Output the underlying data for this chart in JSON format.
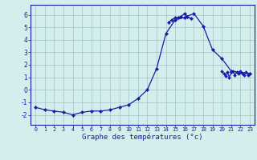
{
  "hours": [
    0,
    1,
    2,
    3,
    4,
    5,
    6,
    7,
    8,
    9,
    10,
    11,
    12,
    13,
    14,
    15,
    16,
    17,
    18,
    19,
    20,
    21,
    22,
    23
  ],
  "temperatures": [
    -1.4,
    -1.6,
    -1.7,
    -1.8,
    -2.0,
    -1.8,
    -1.7,
    -1.7,
    -1.6,
    -1.4,
    -1.2,
    -0.7,
    0.0,
    1.7,
    4.5,
    5.6,
    5.8,
    6.1,
    5.1,
    3.2,
    2.5,
    1.5,
    1.4,
    1.3
  ],
  "peak_hours": [
    14.3,
    14.6,
    15.0,
    15.3,
    15.6,
    16.0,
    16.3,
    16.7
  ],
  "peak_temps": [
    5.4,
    5.6,
    5.75,
    5.8,
    5.85,
    6.1,
    5.85,
    5.7
  ],
  "evening_hours": [
    20.0,
    20.2,
    20.4,
    20.6,
    20.8,
    21.0,
    21.2,
    21.4,
    21.6,
    21.8,
    22.0,
    22.2,
    22.4,
    22.6,
    22.8,
    23.0
  ],
  "evening_temps": [
    1.5,
    1.3,
    1.1,
    1.4,
    1.0,
    1.4,
    1.5,
    1.2,
    1.4,
    1.3,
    1.5,
    1.3,
    1.2,
    1.4,
    1.2,
    1.3
  ],
  "line_color": "#1a1aaa",
  "marker_color": "#1a1aaa",
  "bg_color": "#d4eeed",
  "grid_color": "#aacccc",
  "axis_color": "#1a1aaa",
  "border_color": "#1a1aaa",
  "xlabel": "Graphe des températures (°c)",
  "ylim": [
    -2.8,
    6.8
  ],
  "yticks": [
    -2,
    -1,
    0,
    1,
    2,
    3,
    4,
    5,
    6
  ],
  "xlim": [
    -0.5,
    23.5
  ]
}
